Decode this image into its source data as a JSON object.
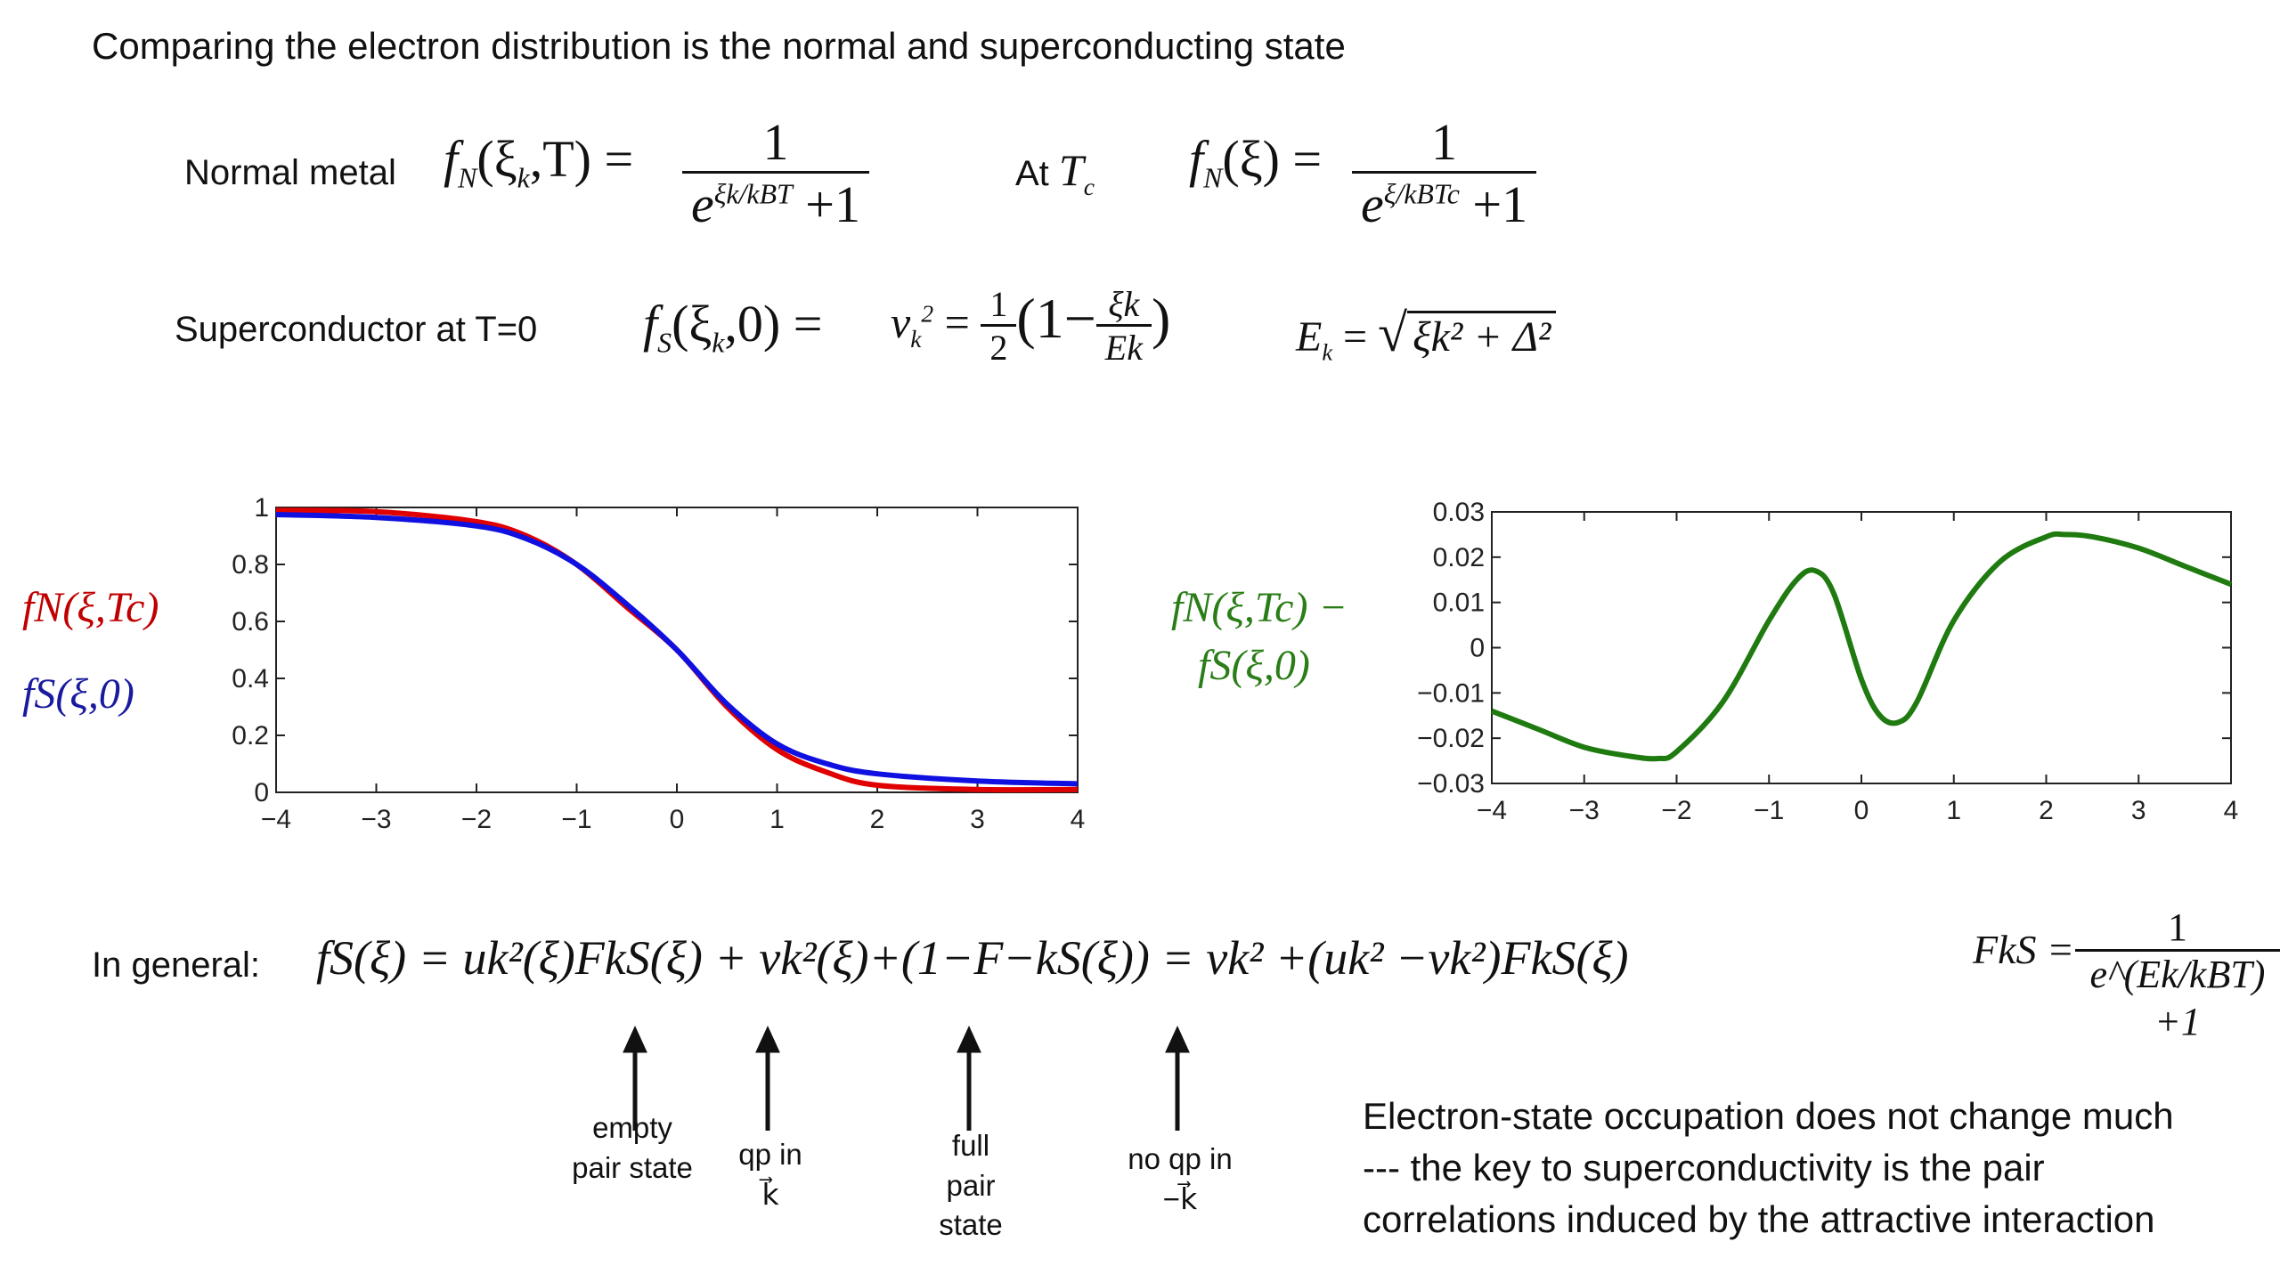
{
  "title": "Comparing the electron distribution is the normal and superconducting state",
  "normal": {
    "label": "Normal metal",
    "lhs": "f",
    "lhs_sub": "N",
    "lhs_args": "(ξ",
    "lhs_args_sub": "k",
    "lhs_args_rest": ",T) =",
    "num": "1",
    "den_e": "e",
    "den_exp": "ξk/kBT",
    "den_plus": "+1"
  },
  "at_tc": {
    "label": "At",
    "T": "T",
    "T_sub": "c",
    "lhs": "f",
    "lhs_sub": "N",
    "lhs_args": "(ξ) =",
    "num": "1",
    "den_e": "e",
    "den_exp": "ξ/kBTc",
    "den_plus": "+1"
  },
  "supercond": {
    "label": "Superconductor at T=0",
    "lhs": "f",
    "lhs_sub": "S",
    "lhs_args": "(ξ",
    "lhs_args_sub": "k",
    "lhs_args_rest": ",0) =",
    "v": "v",
    "v_sub": "k",
    "v_sup": "2",
    "eq": "=",
    "half_num": "1",
    "half_den": "2",
    "paren_open": "(1−",
    "frac_num": "ξk",
    "frac_den": "Ek",
    "paren_close": ")"
  },
  "energy": {
    "lhs": "E",
    "lhs_sub": "k",
    "eq": "=",
    "sqrt": "√",
    "rad": "ξk² + Δ²"
  },
  "plot_left": {
    "label_red": "fN(ξ,Tc)",
    "label_blue": "fS(ξ,0)",
    "colors": {
      "red": "#e00000",
      "blue": "#1010e0"
    },
    "chart_data": {
      "type": "line",
      "xlim": [
        -4,
        4
      ],
      "ylim": [
        0,
        1
      ],
      "xticks": [
        "−4",
        "−3",
        "−2",
        "−1",
        "0",
        "1",
        "2",
        "3",
        "4"
      ],
      "yticks": [
        "0",
        "0.2",
        "0.4",
        "0.6",
        "0.8",
        "1"
      ],
      "series": [
        {
          "name": "fN(ξ,Tc)",
          "color": "#e00000",
          "x": [
            -4,
            -3,
            -2,
            -1.5,
            -1,
            -0.5,
            0,
            0.5,
            1,
            1.5,
            2,
            3,
            4
          ],
          "y": [
            0.99,
            0.985,
            0.95,
            0.9,
            0.8,
            0.65,
            0.5,
            0.3,
            0.15,
            0.07,
            0.025,
            0.01,
            0.01
          ]
        },
        {
          "name": "fS(ξ,0)",
          "color": "#1010e0",
          "x": [
            -4,
            -3,
            -2,
            -1.5,
            -1,
            -0.5,
            0,
            0.5,
            1,
            1.5,
            2,
            3,
            4
          ],
          "y": [
            0.975,
            0.965,
            0.935,
            0.89,
            0.8,
            0.66,
            0.5,
            0.31,
            0.17,
            0.1,
            0.065,
            0.04,
            0.03
          ]
        }
      ]
    }
  },
  "plot_right": {
    "label_line1": "fN(ξ,Tc) −",
    "label_line2": "fS(ξ,0)",
    "color": "#1f7a10",
    "chart_data": {
      "type": "line",
      "xlim": [
        -4,
        4
      ],
      "ylim": [
        -0.03,
        0.03
      ],
      "xticks": [
        "−4",
        "−3",
        "−2",
        "−1",
        "0",
        "1",
        "2",
        "3",
        "4"
      ],
      "yticks": [
        "−0.03",
        "−0.02",
        "−0.01",
        "0",
        "0.01",
        "0.02",
        "0.03"
      ],
      "series": [
        {
          "name": "fN(ξ,Tc) − fS(ξ,0)",
          "color": "#1f7a10",
          "x": [
            -4,
            -3.5,
            -3,
            -2.5,
            -2.2,
            -2,
            -1.5,
            -1,
            -0.7,
            -0.5,
            -0.3,
            0,
            0.2,
            0.4,
            0.6,
            1,
            1.5,
            2,
            2.2,
            2.5,
            3,
            3.5,
            4
          ],
          "y": [
            -0.014,
            -0.018,
            -0.022,
            -0.024,
            -0.0245,
            -0.023,
            -0.012,
            0.006,
            0.015,
            0.017,
            0.012,
            -0.007,
            -0.015,
            -0.0165,
            -0.012,
            0.006,
            0.019,
            0.0245,
            0.025,
            0.0245,
            0.022,
            0.018,
            0.014
          ]
        }
      ]
    }
  },
  "general": {
    "label": "In general:",
    "expr": "fS(ξ) = uk²(ξ)FkS(ξ) + vk²(ξ)+(1−F−kS(ξ)) = vk² +(uk² −vk²)FkS(ξ)"
  },
  "fermi": {
    "lhs": "FkS =",
    "num": "1",
    "den": "e^(Ek/kBT) +1"
  },
  "arrows": [
    {
      "text": "empty\npair state"
    },
    {
      "text": "qp in\nk⃗"
    },
    {
      "text": "full\npair\nstate"
    },
    {
      "text": "no qp in\n−k⃗"
    }
  ],
  "note": [
    "Electron-state occupation does not change much",
    "--- the key to superconductivity is the pair",
    "correlations induced by the attractive interaction"
  ]
}
